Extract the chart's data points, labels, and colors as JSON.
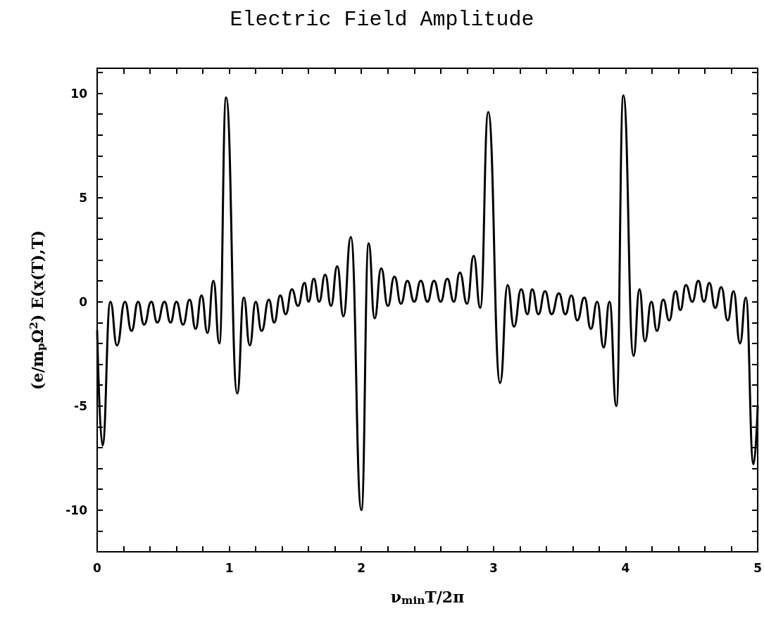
{
  "chart_data": {
    "type": "line",
    "title": "Electric Field Amplitude",
    "xlabel": "ν$_{min}$T/2π",
    "ylabel": "(e/m$_{p}$Ω$^{2}$) E(x(T),T)",
    "color": "#000000",
    "marker": "none",
    "line_style": "solid",
    "xlim": [
      0,
      5
    ],
    "ylim": [
      -12,
      11.2
    ],
    "xticks": [
      0,
      {
        "value": 0.2,
        "label": null
      },
      {
        "value": 0.4,
        "label": null
      },
      {
        "value": 0.6,
        "label": null
      },
      {
        "value": 0.8,
        "label": null
      },
      1,
      {
        "value": 1.2,
        "label": null
      },
      {
        "value": 1.4,
        "label": null
      },
      {
        "value": 1.6,
        "label": null
      },
      {
        "value": 1.8,
        "label": null
      },
      2,
      {
        "value": 2.2,
        "label": null
      },
      {
        "value": 2.4,
        "label": null
      },
      {
        "value": 2.6,
        "label": null
      },
      {
        "value": 2.8,
        "label": null
      },
      3,
      {
        "value": 3.2,
        "label": null
      },
      {
        "value": 3.4,
        "label": null
      },
      {
        "value": 3.6,
        "label": null
      },
      {
        "value": 3.8,
        "label": null
      },
      4,
      {
        "value": 4.2,
        "label": null
      },
      {
        "value": 4.4,
        "label": null
      },
      {
        "value": 4.6,
        "label": null
      },
      {
        "value": 4.8,
        "label": null
      },
      5
    ],
    "yticks": [
      {
        "value": -12,
        "label": null
      },
      {
        "value": -11,
        "label": null
      },
      -10,
      {
        "value": -9,
        "label": null
      },
      {
        "value": -8,
        "label": null
      },
      {
        "value": -7,
        "label": null
      },
      {
        "value": -6,
        "label": null
      },
      -5,
      {
        "value": -4,
        "label": null
      },
      {
        "value": -3,
        "label": null
      },
      {
        "value": -2,
        "label": null
      },
      {
        "value": -1,
        "label": null
      },
      0,
      {
        "value": 1,
        "label": null
      },
      {
        "value": 2,
        "label": null
      },
      {
        "value": 3,
        "label": null
      },
      {
        "value": 4,
        "label": null
      },
      5,
      {
        "value": 6,
        "label": null
      },
      {
        "value": 7,
        "label": null
      },
      {
        "value": 8,
        "label": null
      },
      {
        "value": 9,
        "label": null
      },
      10,
      {
        "value": 11,
        "label": null
      }
    ],
    "x": [
      0,
      0.04,
      0.1,
      0.15,
      0.21,
      0.26,
      0.31,
      0.355,
      0.41,
      0.455,
      0.51,
      0.555,
      0.6,
      0.65,
      0.7,
      0.745,
      0.79,
      0.835,
      0.88,
      0.925,
      0.976,
      1.06,
      1.11,
      1.155,
      1.2,
      1.245,
      1.3,
      1.34,
      1.386,
      1.427,
      1.474,
      1.52,
      1.57,
      1.6,
      1.64,
      1.68,
      1.726,
      1.77,
      1.817,
      1.864,
      1.92,
      2.0,
      2.055,
      2.1,
      2.15,
      2.2,
      2.25,
      2.3,
      2.348,
      2.4,
      2.45,
      2.5,
      2.55,
      2.6,
      2.65,
      2.7,
      2.745,
      2.8,
      2.85,
      2.9,
      2.96,
      3.05,
      3.107,
      3.155,
      3.21,
      3.257,
      3.293,
      3.34,
      3.39,
      3.44,
      3.495,
      3.544,
      3.59,
      3.634,
      3.688,
      3.737,
      3.785,
      3.834,
      3.878,
      3.93,
      3.983,
      4.06,
      4.105,
      4.146,
      4.195,
      4.237,
      4.285,
      4.33,
      4.378,
      4.415,
      4.456,
      4.505,
      4.55,
      4.593,
      4.634,
      4.678,
      4.724,
      4.773,
      4.817,
      4.866,
      4.91,
      4.968,
      5
    ],
    "values": [
      -1.4,
      -6.9,
      0,
      -2.1,
      0,
      -1.4,
      0,
      -1.1,
      0,
      -1.0,
      0,
      -1.0,
      0,
      -1.1,
      0.1,
      -1.3,
      0.3,
      -1.5,
      1.0,
      -2.0,
      9.8,
      -4.4,
      0.2,
      -2.1,
      0,
      -1.4,
      0.1,
      -1.0,
      0.3,
      -0.6,
      0.6,
      -0.2,
      0.9,
      0,
      1.1,
      0,
      1.3,
      -0.2,
      1.7,
      -0.7,
      3.1,
      -10.0,
      2.8,
      -0.8,
      1.6,
      -0.2,
      1.2,
      -0.1,
      1.0,
      0,
      1.0,
      0,
      1.0,
      0,
      1.1,
      0,
      1.4,
      -0.1,
      2.2,
      -0.3,
      9.1,
      -3.9,
      0.8,
      -1.2,
      0.6,
      -0.6,
      0.6,
      -0.6,
      0.5,
      -0.6,
      0.4,
      -0.6,
      0.3,
      -0.9,
      0.2,
      -1.3,
      0,
      -2.2,
      0,
      -5.0,
      9.9,
      -2.6,
      0.6,
      -1.9,
      0,
      -1.4,
      0.1,
      -0.9,
      0.5,
      -0.4,
      0.8,
      0,
      1.0,
      0,
      0.9,
      -0.3,
      0.7,
      -0.9,
      0.5,
      -2.0,
      0.2,
      -7.8,
      -5.0
    ]
  }
}
